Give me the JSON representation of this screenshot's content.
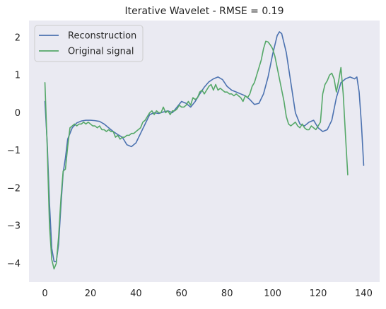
{
  "chart_data": {
    "type": "line",
    "title": "Iterative Wavelet - RMSE = 0.19",
    "xlabel": "",
    "ylabel": "",
    "xlim": [
      -7,
      147
    ],
    "ylim": [
      -4.5,
      2.45
    ],
    "xticks": [
      0,
      20,
      40,
      60,
      80,
      100,
      120,
      140
    ],
    "yticks": [
      -4,
      -3,
      -2,
      -1,
      0,
      1,
      2
    ],
    "grid": false,
    "legend": "top-left",
    "colors": {
      "background": "#eaeaf2",
      "reconstruction": "#4c72b0",
      "original": "#55a868"
    },
    "series": [
      {
        "name": "Reconstruction",
        "points": [
          [
            0,
            0.3
          ],
          [
            1,
            -0.8
          ],
          [
            2,
            -2.4
          ],
          [
            3,
            -3.6
          ],
          [
            4,
            -3.95
          ],
          [
            5,
            -3.95
          ],
          [
            6,
            -3.5
          ],
          [
            7,
            -2.5
          ],
          [
            8,
            -1.6
          ],
          [
            9,
            -1.2
          ],
          [
            10,
            -0.7
          ],
          [
            12,
            -0.4
          ],
          [
            14,
            -0.27
          ],
          [
            16,
            -0.22
          ],
          [
            18,
            -0.2
          ],
          [
            20,
            -0.2
          ],
          [
            22,
            -0.21
          ],
          [
            24,
            -0.23
          ],
          [
            26,
            -0.3
          ],
          [
            28,
            -0.4
          ],
          [
            30,
            -0.5
          ],
          [
            32,
            -0.58
          ],
          [
            34,
            -0.65
          ],
          [
            35,
            -0.75
          ],
          [
            36,
            -0.85
          ],
          [
            38,
            -0.9
          ],
          [
            40,
            -0.8
          ],
          [
            42,
            -0.55
          ],
          [
            44,
            -0.3
          ],
          [
            46,
            -0.05
          ],
          [
            48,
            0.0
          ],
          [
            50,
            -0.02
          ],
          [
            52,
            0.02
          ],
          [
            54,
            0.05
          ],
          [
            56,
            0.0
          ],
          [
            58,
            0.15
          ],
          [
            60,
            0.3
          ],
          [
            62,
            0.25
          ],
          [
            64,
            0.15
          ],
          [
            66,
            0.3
          ],
          [
            68,
            0.5
          ],
          [
            70,
            0.68
          ],
          [
            72,
            0.82
          ],
          [
            74,
            0.9
          ],
          [
            76,
            0.95
          ],
          [
            78,
            0.88
          ],
          [
            80,
            0.7
          ],
          [
            82,
            0.6
          ],
          [
            84,
            0.55
          ],
          [
            86,
            0.5
          ],
          [
            88,
            0.45
          ],
          [
            90,
            0.35
          ],
          [
            92,
            0.22
          ],
          [
            94,
            0.25
          ],
          [
            96,
            0.5
          ],
          [
            98,
            0.95
          ],
          [
            100,
            1.55
          ],
          [
            102,
            2.05
          ],
          [
            103,
            2.15
          ],
          [
            104,
            2.1
          ],
          [
            106,
            1.6
          ],
          [
            108,
            0.8
          ],
          [
            110,
            0.0
          ],
          [
            112,
            -0.3
          ],
          [
            114,
            -0.35
          ],
          [
            116,
            -0.25
          ],
          [
            118,
            -0.2
          ],
          [
            120,
            -0.4
          ],
          [
            122,
            -0.5
          ],
          [
            124,
            -0.45
          ],
          [
            126,
            -0.2
          ],
          [
            128,
            0.4
          ],
          [
            130,
            0.8
          ],
          [
            132,
            0.9
          ],
          [
            134,
            0.95
          ],
          [
            136,
            0.9
          ],
          [
            137,
            0.95
          ],
          [
            138,
            0.55
          ],
          [
            139,
            -0.3
          ],
          [
            140,
            -1.4
          ]
        ]
      },
      {
        "name": "Original signal",
        "points": [
          [
            0,
            0.8
          ],
          [
            1,
            -0.9
          ],
          [
            2,
            -3.0
          ],
          [
            3,
            -3.9
          ],
          [
            4,
            -4.15
          ],
          [
            5,
            -4.0
          ],
          [
            6,
            -3.3
          ],
          [
            7,
            -2.3
          ],
          [
            8,
            -1.55
          ],
          [
            9,
            -1.5
          ],
          [
            10,
            -0.9
          ],
          [
            11,
            -0.4
          ],
          [
            12,
            -0.35
          ],
          [
            13,
            -0.3
          ],
          [
            14,
            -0.35
          ],
          [
            15,
            -0.3
          ],
          [
            16,
            -0.3
          ],
          [
            17,
            -0.25
          ],
          [
            18,
            -0.3
          ],
          [
            19,
            -0.25
          ],
          [
            20,
            -0.3
          ],
          [
            21,
            -0.35
          ],
          [
            22,
            -0.35
          ],
          [
            23,
            -0.4
          ],
          [
            24,
            -0.35
          ],
          [
            25,
            -0.45
          ],
          [
            26,
            -0.45
          ],
          [
            27,
            -0.5
          ],
          [
            28,
            -0.45
          ],
          [
            29,
            -0.5
          ],
          [
            30,
            -0.5
          ],
          [
            31,
            -0.65
          ],
          [
            32,
            -0.6
          ],
          [
            33,
            -0.7
          ],
          [
            34,
            -0.65
          ],
          [
            35,
            -0.65
          ],
          [
            36,
            -0.6
          ],
          [
            37,
            -0.6
          ],
          [
            38,
            -0.55
          ],
          [
            39,
            -0.55
          ],
          [
            40,
            -0.5
          ],
          [
            41,
            -0.45
          ],
          [
            42,
            -0.4
          ],
          [
            43,
            -0.25
          ],
          [
            44,
            -0.2
          ],
          [
            45,
            -0.1
          ],
          [
            46,
            0.0
          ],
          [
            47,
            0.05
          ],
          [
            48,
            -0.05
          ],
          [
            49,
            0.05
          ],
          [
            50,
            0.0
          ],
          [
            51,
            0.0
          ],
          [
            52,
            0.15
          ],
          [
            53,
            0.0
          ],
          [
            54,
            0.05
          ],
          [
            55,
            -0.05
          ],
          [
            56,
            0.05
          ],
          [
            57,
            0.05
          ],
          [
            58,
            0.1
          ],
          [
            59,
            0.2
          ],
          [
            60,
            0.15
          ],
          [
            61,
            0.15
          ],
          [
            62,
            0.2
          ],
          [
            63,
            0.3
          ],
          [
            64,
            0.2
          ],
          [
            65,
            0.4
          ],
          [
            66,
            0.35
          ],
          [
            67,
            0.4
          ],
          [
            68,
            0.55
          ],
          [
            69,
            0.6
          ],
          [
            70,
            0.5
          ],
          [
            71,
            0.6
          ],
          [
            72,
            0.7
          ],
          [
            73,
            0.75
          ],
          [
            74,
            0.6
          ],
          [
            75,
            0.75
          ],
          [
            76,
            0.6
          ],
          [
            77,
            0.65
          ],
          [
            78,
            0.6
          ],
          [
            79,
            0.55
          ],
          [
            80,
            0.55
          ],
          [
            81,
            0.5
          ],
          [
            82,
            0.5
          ],
          [
            83,
            0.45
          ],
          [
            84,
            0.5
          ],
          [
            85,
            0.45
          ],
          [
            86,
            0.4
          ],
          [
            87,
            0.3
          ],
          [
            88,
            0.45
          ],
          [
            89,
            0.4
          ],
          [
            90,
            0.5
          ],
          [
            91,
            0.7
          ],
          [
            92,
            0.8
          ],
          [
            93,
            1.0
          ],
          [
            94,
            1.2
          ],
          [
            95,
            1.4
          ],
          [
            96,
            1.7
          ],
          [
            97,
            1.9
          ],
          [
            98,
            1.88
          ],
          [
            99,
            1.8
          ],
          [
            100,
            1.7
          ],
          [
            101,
            1.5
          ],
          [
            102,
            1.2
          ],
          [
            103,
            0.9
          ],
          [
            104,
            0.6
          ],
          [
            105,
            0.3
          ],
          [
            106,
            -0.1
          ],
          [
            107,
            -0.3
          ],
          [
            108,
            -0.35
          ],
          [
            109,
            -0.3
          ],
          [
            110,
            -0.25
          ],
          [
            111,
            -0.35
          ],
          [
            112,
            -0.4
          ],
          [
            113,
            -0.3
          ],
          [
            114,
            -0.4
          ],
          [
            115,
            -0.45
          ],
          [
            116,
            -0.45
          ],
          [
            117,
            -0.35
          ],
          [
            118,
            -0.4
          ],
          [
            119,
            -0.45
          ],
          [
            120,
            -0.35
          ],
          [
            121,
            -0.25
          ],
          [
            122,
            0.5
          ],
          [
            123,
            0.75
          ],
          [
            124,
            0.85
          ],
          [
            125,
            1.0
          ],
          [
            126,
            1.05
          ],
          [
            127,
            0.9
          ],
          [
            128,
            0.55
          ],
          [
            129,
            0.85
          ],
          [
            130,
            1.2
          ],
          [
            131,
            0.5
          ],
          [
            132,
            -0.6
          ],
          [
            133,
            -1.65
          ]
        ]
      }
    ]
  }
}
